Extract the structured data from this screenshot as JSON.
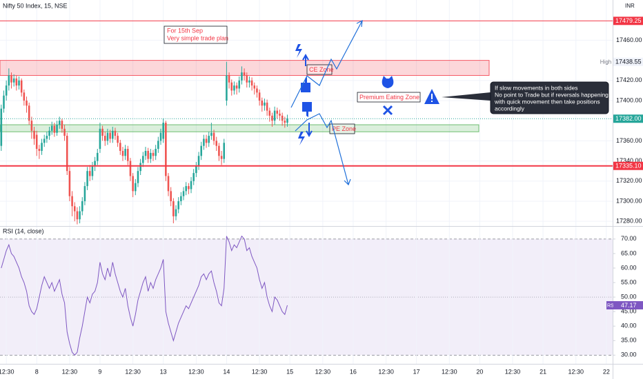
{
  "chart_data": [
    {
      "type": "candlestick",
      "title": "Nifty 50 Index, 15, NSE",
      "currency": "INR",
      "xlim": [
        -0.5,
        241.5
      ],
      "ylim": [
        17276,
        17500
      ],
      "yticks": [
        {
          "value": 17280,
          "label": "17280.00"
        },
        {
          "value": 17300,
          "label": "17300.00"
        },
        {
          "value": 17320,
          "label": "17320.00"
        },
        {
          "value": 17340,
          "label": "17340.00"
        },
        {
          "value": 17360,
          "label": "17360.00"
        },
        {
          "value": 17400,
          "label": "17400.00"
        },
        {
          "value": 17420,
          "label": "17420.00"
        },
        {
          "value": 17460,
          "label": "17460.00"
        }
      ],
      "open": [
        17355,
        17392,
        17405,
        17415,
        17425,
        17418,
        17422,
        17415,
        17420,
        17408,
        17400,
        17395,
        17380,
        17370,
        17366,
        17352,
        17350,
        17358,
        17362,
        17365,
        17370,
        17375,
        17368,
        17376,
        17380,
        17372,
        17365,
        17330,
        17305,
        17295,
        17290,
        17282,
        17290,
        17300,
        17315,
        17330,
        17325,
        17335,
        17340,
        17352,
        17372,
        17365,
        17360,
        17368,
        17362,
        17370,
        17365,
        17358,
        17350,
        17345,
        17352,
        17340,
        17325,
        17310,
        17318,
        17330,
        17338,
        17345,
        17350,
        17342,
        17348,
        17345,
        17352,
        17360,
        17362,
        17378,
        17325,
        17310,
        17300,
        17285,
        17292,
        17300,
        17305,
        17310,
        17315,
        17312,
        17320,
        17328,
        17335,
        17345,
        17355,
        17362,
        17358,
        17365,
        17368,
        17360,
        17355,
        17345,
        17342,
        17400,
        17425,
        17418,
        17410,
        17415,
        17412,
        17420,
        17428,
        17425,
        17418,
        17420,
        17415,
        17412,
        17408,
        17400,
        17395,
        17398,
        17390,
        17385,
        17380,
        17390,
        17387,
        17385,
        17380,
        17378
      ],
      "high": [
        17396,
        17410,
        17420,
        17432,
        17428,
        17426,
        17425,
        17424,
        17422,
        17411,
        17404,
        17398,
        17384,
        17374,
        17370,
        17356,
        17362,
        17366,
        17369,
        17374,
        17379,
        17378,
        17380,
        17384,
        17382,
        17376,
        17368,
        17334,
        17310,
        17299,
        17294,
        17295,
        17304,
        17319,
        17334,
        17336,
        17339,
        17344,
        17352,
        17378,
        17375,
        17369,
        17372,
        17371,
        17374,
        17373,
        17368,
        17361,
        17354,
        17356,
        17355,
        17343,
        17328,
        17322,
        17334,
        17342,
        17349,
        17354,
        17353,
        17352,
        17351,
        17356,
        17364,
        17372,
        17382,
        17380,
        17328,
        17314,
        17303,
        17296,
        17304,
        17309,
        17314,
        17319,
        17318,
        17324,
        17332,
        17339,
        17349,
        17359,
        17366,
        17366,
        17369,
        17378,
        17371,
        17364,
        17358,
        17350,
        17362,
        17438.55,
        17428,
        17421,
        17419,
        17418,
        17424,
        17434,
        17432,
        17428,
        17424,
        17423,
        17418,
        17415,
        17411,
        17403,
        17402,
        17401,
        17393,
        17388,
        17394,
        17393,
        17391,
        17388,
        17384,
        17386
      ],
      "low": [
        17350,
        17388,
        17400,
        17410,
        17412,
        17414,
        17410,
        17411,
        17404,
        17395,
        17388,
        17376,
        17362,
        17356,
        17345,
        17342,
        17346,
        17354,
        17358,
        17361,
        17366,
        17364,
        17365,
        17372,
        17368,
        17360,
        17326,
        17300,
        17285,
        17280,
        17277,
        17278,
        17286,
        17296,
        17311,
        17320,
        17321,
        17330,
        17336,
        17348,
        17360,
        17355,
        17356,
        17358,
        17358,
        17361,
        17354,
        17346,
        17340,
        17341,
        17336,
        17320,
        17304,
        17306,
        17314,
        17326,
        17334,
        17341,
        17338,
        17338,
        17340,
        17341,
        17348,
        17356,
        17358,
        17320,
        17305,
        17295,
        17278,
        17281,
        17288,
        17296,
        17301,
        17306,
        17307,
        17308,
        17316,
        17324,
        17331,
        17341,
        17351,
        17353,
        17354,
        17361,
        17356,
        17350,
        17340,
        17336,
        17338,
        17395,
        17412,
        17405,
        17406,
        17406,
        17408,
        17416,
        17420,
        17413,
        17413,
        17410,
        17406,
        17403,
        17395,
        17389,
        17390,
        17385,
        17379,
        17374,
        17376,
        17382,
        17380,
        17375,
        17373,
        17374
      ],
      "close": [
        17392,
        17405,
        17415,
        17425,
        17418,
        17422,
        17415,
        17420,
        17408,
        17400,
        17395,
        17380,
        17370,
        17362,
        17352,
        17350,
        17358,
        17362,
        17365,
        17370,
        17375,
        17368,
        17376,
        17380,
        17372,
        17365,
        17330,
        17305,
        17295,
        17290,
        17282,
        17290,
        17300,
        17315,
        17330,
        17325,
        17335,
        17340,
        17348,
        17372,
        17365,
        17360,
        17368,
        17362,
        17370,
        17365,
        17358,
        17350,
        17345,
        17352,
        17340,
        17325,
        17310,
        17318,
        17330,
        17338,
        17345,
        17350,
        17342,
        17348,
        17345,
        17352,
        17360,
        17368,
        17378,
        17325,
        17310,
        17300,
        17285,
        17292,
        17300,
        17305,
        17310,
        17315,
        17312,
        17320,
        17328,
        17335,
        17345,
        17355,
        17362,
        17358,
        17365,
        17368,
        17360,
        17355,
        17345,
        17342,
        17358,
        17425,
        17418,
        17410,
        17415,
        17412,
        17420,
        17428,
        17425,
        17418,
        17420,
        17415,
        17412,
        17408,
        17400,
        17395,
        17398,
        17390,
        17385,
        17380,
        17390,
        17387,
        17385,
        17380,
        17378,
        17382
      ],
      "up_color": "#26a69a",
      "down_color": "#ef5350",
      "price_lines": [
        {
          "value": 17479.25,
          "label": "17479.25",
          "color": "#f23645"
        },
        {
          "value": 17335.1,
          "label": "17335.10",
          "color": "#f23645"
        }
      ],
      "last_price": {
        "value": 17382,
        "label": "17382.00",
        "color": "#26a69a"
      },
      "high_marker": {
        "name": "High",
        "value": 17438.55,
        "label": "17438.55"
      },
      "zones": [
        {
          "name": "CE Zone",
          "top": 17440,
          "bottom": 17425,
          "color": "#f23645"
        },
        {
          "name": "PE Zone",
          "top": 17376,
          "bottom": 17369,
          "color": "#4caf50"
        }
      ],
      "annotations": {
        "plan": [
          "For 15th Sep",
          "Very simple trade plan"
        ],
        "premium": "Premium Eating  Zone",
        "callout": [
          "If slow movements in both sides",
          "No point to Trade but if reversals happening",
          "with quick movement then take positions",
          "accordingly"
        ]
      }
    },
    {
      "type": "line",
      "title": "RSI (14, close)",
      "name": "RSI",
      "color": "#7e57c2",
      "xlim": [
        -0.5,
        241.5
      ],
      "ylim": [
        27,
        74
      ],
      "values": [
        60,
        63,
        66,
        68,
        65,
        64,
        62,
        60,
        57,
        55,
        52,
        47,
        45,
        44,
        46,
        50,
        54,
        57,
        55,
        53,
        55,
        52,
        54,
        56,
        51,
        48,
        38,
        34,
        31,
        30,
        31,
        36,
        40,
        45,
        50,
        48,
        51,
        52,
        55,
        62,
        58,
        56,
        60,
        57,
        62,
        58,
        55,
        52,
        50,
        53,
        47,
        43,
        40,
        44,
        49,
        52,
        55,
        57,
        52,
        55,
        53,
        56,
        58,
        60,
        63,
        45,
        41,
        38,
        35,
        38,
        41,
        43,
        45,
        47,
        46,
        48,
        50,
        52,
        54,
        57,
        58,
        56,
        58,
        59,
        55,
        52,
        48,
        47,
        53,
        71,
        69,
        66,
        68,
        67,
        69,
        71,
        70,
        66,
        67,
        64,
        62,
        60,
        56,
        53,
        55,
        50,
        47,
        45,
        50,
        49,
        47,
        45,
        44,
        47.17
      ],
      "yticks": [
        {
          "value": 30,
          "label": "30.00"
        },
        {
          "value": 35,
          "label": "35.00"
        },
        {
          "value": 40,
          "label": "40.00"
        },
        {
          "value": 45,
          "label": "45.00"
        },
        {
          "value": 50,
          "label": "50.00"
        },
        {
          "value": 55,
          "label": "55.00"
        },
        {
          "value": 60,
          "label": "60.00"
        },
        {
          "value": 65,
          "label": "65.00"
        },
        {
          "value": 70,
          "label": "70.00"
        }
      ],
      "band": [
        30,
        70
      ],
      "midline": 50,
      "xticks": [
        {
          "value": 2,
          "label": "12:30"
        },
        {
          "value": 14,
          "label": "8"
        },
        {
          "value": 27,
          "label": "12:30"
        },
        {
          "value": 39,
          "label": "9"
        },
        {
          "value": 52,
          "label": "12:30"
        },
        {
          "value": 64,
          "label": "13"
        },
        {
          "value": 77,
          "label": "12:30"
        },
        {
          "value": 89,
          "label": "14"
        },
        {
          "value": 102,
          "label": "12:30"
        },
        {
          "value": 114,
          "label": "15"
        },
        {
          "value": 127,
          "label": "12:30"
        },
        {
          "value": 139,
          "label": "16"
        },
        {
          "value": 152,
          "label": "12:30"
        },
        {
          "value": 164,
          "label": "17"
        },
        {
          "value": 177,
          "label": "12:30"
        },
        {
          "value": 189,
          "label": "20"
        },
        {
          "value": 202,
          "label": "12:30"
        },
        {
          "value": 214,
          "label": "21"
        },
        {
          "value": 227,
          "label": "12:30"
        },
        {
          "value": 239,
          "label": "22"
        }
      ]
    }
  ]
}
